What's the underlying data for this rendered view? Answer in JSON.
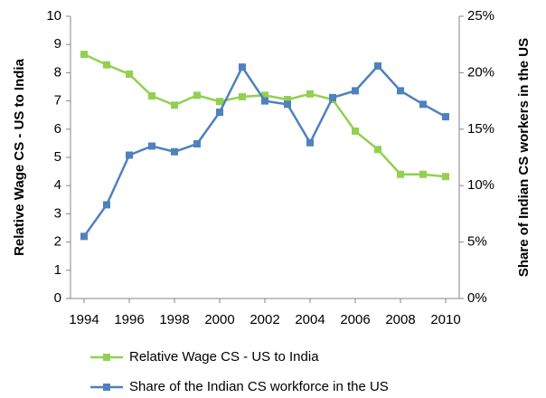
{
  "chart_data": {
    "type": "line",
    "x": [
      1994,
      1995,
      1996,
      1997,
      1998,
      1999,
      2000,
      2001,
      2002,
      2003,
      2004,
      2005,
      2006,
      2007,
      2008,
      2009,
      2010
    ],
    "series": [
      {
        "name": "Relative Wage CS - US to India",
        "color": "#92d050",
        "axis": "y",
        "values": [
          8.65,
          8.28,
          7.95,
          7.18,
          6.85,
          7.2,
          6.98,
          7.15,
          7.2,
          7.05,
          7.25,
          7.05,
          5.93,
          5.28,
          4.4,
          4.4,
          4.32
        ]
      },
      {
        "name": "Share of the Indian CS workforce in the US",
        "color": "#4f81bd",
        "axis": "y2",
        "values": [
          5.5,
          8.3,
          12.7,
          13.5,
          13.0,
          13.7,
          16.5,
          20.5,
          17.5,
          17.2,
          13.8,
          17.8,
          18.4,
          20.6,
          18.4,
          17.2,
          16.1
        ]
      }
    ],
    "ylabel": "Relative Wage CS - US to India",
    "y2label": "Share of Indian CS workers in the US",
    "xlim": [
      1993.4,
      2010.6
    ],
    "xticks": [
      1994,
      1996,
      1998,
      2000,
      2002,
      2004,
      2006,
      2008,
      2010
    ],
    "ylim": [
      0,
      10
    ],
    "yticks": [
      0,
      1,
      2,
      3,
      4,
      5,
      6,
      7,
      8,
      9,
      10
    ],
    "y2lim": [
      0,
      25
    ],
    "y2ticks": [
      {
        "value": 0,
        "label": "0%"
      },
      {
        "value": 5,
        "label": "5%"
      },
      {
        "value": 10,
        "label": "10%"
      },
      {
        "value": 15,
        "label": "15%"
      },
      {
        "value": 20,
        "label": "20%"
      },
      {
        "value": 25,
        "label": "25%"
      }
    ],
    "grid": false,
    "legend": "bottom"
  }
}
